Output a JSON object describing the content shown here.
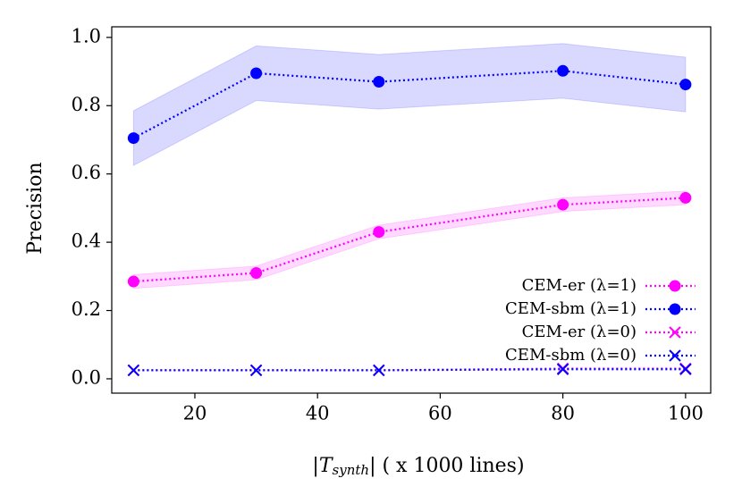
{
  "chart_data": {
    "type": "line",
    "xlabel_parts": [
      "|",
      "T",
      "synth",
      "| ( x 1000 lines)"
    ],
    "ylabel": "Precision",
    "x": [
      10,
      30,
      50,
      80,
      100
    ],
    "xlim": [
      6.45,
      104.1
    ],
    "xticks": [
      20,
      40,
      60,
      80,
      100
    ],
    "ylim": [
      -0.042,
      1.031
    ],
    "yticks": [
      {
        "value": 0,
        "label": "0.0"
      },
      {
        "value": 0.2,
        "label": "0.2"
      },
      {
        "value": 0.4,
        "label": "0.4"
      },
      {
        "value": 0.6,
        "label": "0.6"
      },
      {
        "value": 0.8,
        "label": "0.8"
      },
      {
        "value": 1,
        "label": "1.0"
      }
    ],
    "legend": "lower right",
    "series": [
      {
        "name": "CEM-er (λ=1)",
        "color": "#ff00ff",
        "marker": "circle",
        "values": [
          0.285,
          0.31,
          0.43,
          0.51,
          0.53
        ],
        "lower": [
          0.265,
          0.29,
          0.41,
          0.49,
          0.51
        ],
        "upper": [
          0.305,
          0.33,
          0.45,
          0.53,
          0.55
        ]
      },
      {
        "name": "CEM-sbm (λ=1)",
        "color": "#0000ff",
        "marker": "circle",
        "values": [
          0.705,
          0.895,
          0.87,
          0.902,
          0.862
        ],
        "lower": [
          0.625,
          0.815,
          0.79,
          0.822,
          0.782
        ],
        "upper": [
          0.785,
          0.975,
          0.95,
          0.982,
          0.942
        ]
      },
      {
        "name": "CEM-er (λ=0)",
        "color": "#ff00ff",
        "marker": "x",
        "values": [
          0.025,
          0.025,
          0.025,
          0.03,
          0.03
        ]
      },
      {
        "name": "CEM-sbm (λ=0)",
        "color": "#0000ff",
        "marker": "x",
        "values": [
          0.025,
          0.025,
          0.025,
          0.028,
          0.028
        ]
      }
    ]
  }
}
